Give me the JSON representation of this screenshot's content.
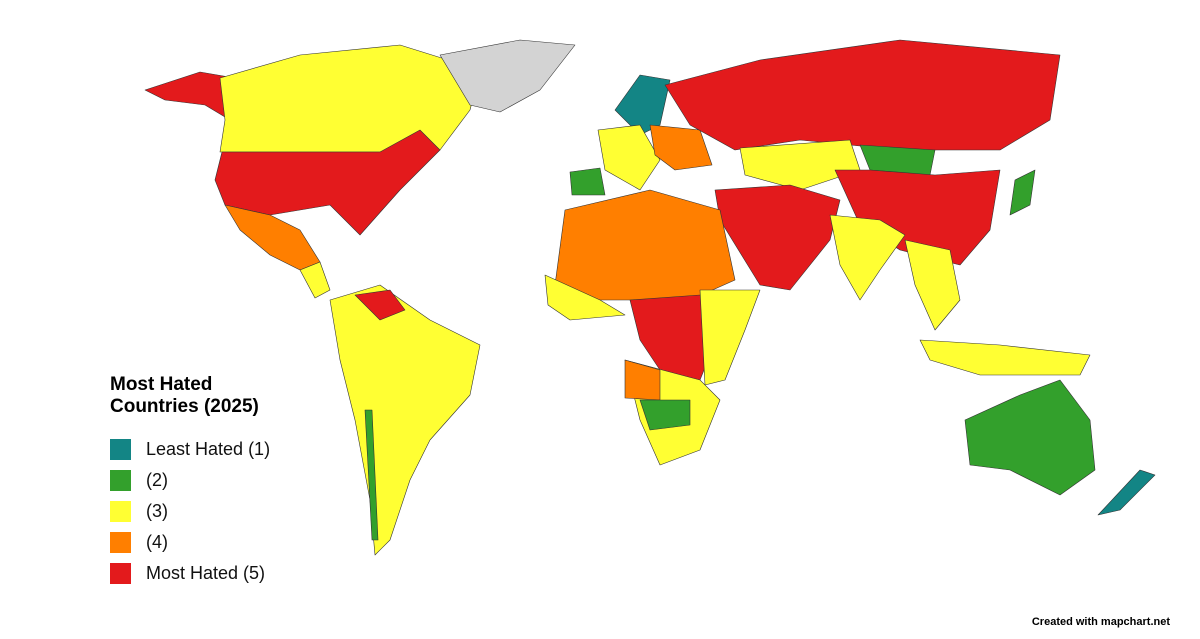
{
  "legend": {
    "title": "Most Hated Countries (2025)",
    "items": [
      {
        "label": "Least Hated (1)",
        "level": 1,
        "color": "#138585"
      },
      {
        "label": "(2)",
        "level": 2,
        "color": "#33a02c"
      },
      {
        "label": "(3)",
        "level": 3,
        "color": "#ffff33"
      },
      {
        "label": "(4)",
        "level": 4,
        "color": "#ff7f00"
      },
      {
        "label": "Most Hated (5)",
        "level": 5,
        "color": "#e31a1c"
      }
    ],
    "no_data_color": "#d3d3d3"
  },
  "credit": "Created with mapchart.net"
}
